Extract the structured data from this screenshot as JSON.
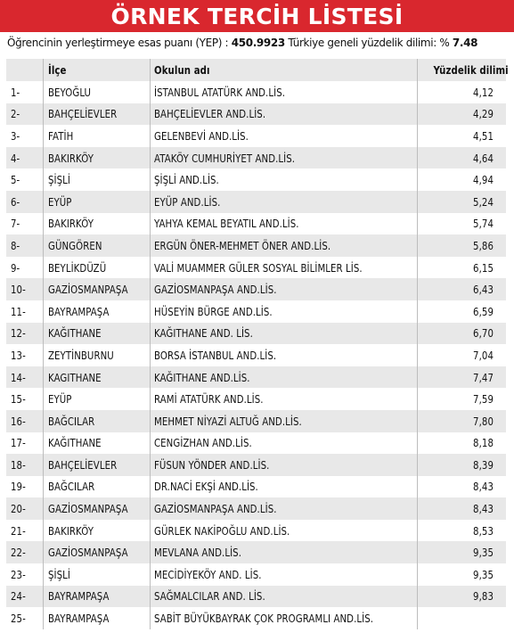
{
  "title": "ÖRNEK TERCİH LİSTESİ",
  "info": {
    "text1": "Öğrencinin yerleştirmeye esas puanı (YEP) : ",
    "score": "450.9923",
    "text2": " Türkiye geneli yüzdelik dilimi: % ",
    "percentile": "7.48"
  },
  "columns": {
    "no": "",
    "district": "İlçe",
    "school": "Okulun adı",
    "percentile": "Yüzdelik dilimi"
  },
  "rows": [
    {
      "no": "1-",
      "district": "BEYOĞLU",
      "school": "İSTANBUL ATATÜRK AND.LİS.",
      "pct": "4,12"
    },
    {
      "no": "2-",
      "district": "BAHÇELİEVLER",
      "school": "BAHÇELİEVLER AND.LİS.",
      "pct": "4,29"
    },
    {
      "no": "3-",
      "district": "FATİH",
      "school": "GELENBEVİ AND.LİS.",
      "pct": "4,51"
    },
    {
      "no": "4-",
      "district": "BAKIRKÖY",
      "school": "ATAKÖY CUMHURİYET AND.LİS.",
      "pct": "4,64"
    },
    {
      "no": "5-",
      "district": "ŞİŞLİ",
      "school": "ŞİŞLİ AND.LİS.",
      "pct": "4,94"
    },
    {
      "no": "6-",
      "district": "EYÜP",
      "school": "EYÜP AND.LİS.",
      "pct": "5,24"
    },
    {
      "no": "7-",
      "district": "BAKIRKÖY",
      "school": "YAHYA KEMAL BEYATIL AND.LİS.",
      "pct": "5,74"
    },
    {
      "no": "8-",
      "district": "GÜNGÖREN",
      "school": "ERGÜN ÖNER-MEHMET ÖNER AND.LİS.",
      "pct": "5,86"
    },
    {
      "no": "9-",
      "district": "BEYLİKDÜZÜ",
      "school": "VALİ MUAMMER GÜLER SOSYAL BİLİMLER LİS.",
      "pct": "6,15"
    },
    {
      "no": "10-",
      "district": "GAZİOSMANPAŞA",
      "school": "GAZİOSMANPAŞA AND.LİS.",
      "pct": "6,43"
    },
    {
      "no": "11-",
      "district": "BAYRAMPAŞA",
      "school": "HÜSEYİN BÜRGE AND.LİS.",
      "pct": "6,59"
    },
    {
      "no": "12-",
      "district": "KAĞITHANE",
      "school": "KAĞITHANE AND. LİS.",
      "pct": "6,70"
    },
    {
      "no": "13-",
      "district": "ZEYTİNBURNU",
      "school": "BORSA İSTANBUL AND.LİS.",
      "pct": "7,04"
    },
    {
      "no": "14-",
      "district": "KAGITHANE",
      "school": "KAĞITHANE AND.LİS.",
      "pct": "7,47"
    },
    {
      "no": "15-",
      "district": "EYÜP",
      "school": "RAMİ ATATÜRK AND.LİS.",
      "pct": "7,59"
    },
    {
      "no": "16-",
      "district": "BAĞCILAR",
      "school": "MEHMET NİYAZİ ALTUĞ AND.LİS.",
      "pct": "7,80"
    },
    {
      "no": "17-",
      "district": "KAĞITHANE",
      "school": "CENGİZHAN AND.LİS.",
      "pct": "8,18"
    },
    {
      "no": "18-",
      "district": "BAHÇELİEVLER",
      "school": "FÜSUN YÖNDER AND.LİS.",
      "pct": "8,39"
    },
    {
      "no": "19-",
      "district": "BAĞCILAR",
      "school": "DR.NACİ EKŞİ AND.LİS.",
      "pct": "8,43"
    },
    {
      "no": "20-",
      "district": "GAZİOSMANPAŞA",
      "school": "GAZİOSMANPAŞA AND.LİS.",
      "pct": "8,43"
    },
    {
      "no": "21-",
      "district": "BAKIRKÖY",
      "school": "GÜRLEK NAKİPOĞLU AND.LİS.",
      "pct": "8,53"
    },
    {
      "no": "22-",
      "district": "GAZİOSMANPAŞA",
      "school": "MEVLANA AND.LİS.",
      "pct": "9,35"
    },
    {
      "no": "23-",
      "district": "ŞİŞLİ",
      "school": "MECİDİYEKÖY AND. LİS.",
      "pct": "9,35"
    },
    {
      "no": "24-",
      "district": "BAYRAMPAŞA",
      "school": "SAĞMALCILAR AND. LİS.",
      "pct": "9,83"
    },
    {
      "no": "25-",
      "district": "BAYRAMPAŞA",
      "school": "SABİT BÜYÜKBAYRAK ÇOK PROGRAMLI AND.LİS.",
      "pct": ""
    }
  ],
  "colors": {
    "title_bg": "#d9272e",
    "title_text": "#ffffff",
    "row_shade": "#e8e8e8",
    "divider": "#bdbdbd"
  }
}
